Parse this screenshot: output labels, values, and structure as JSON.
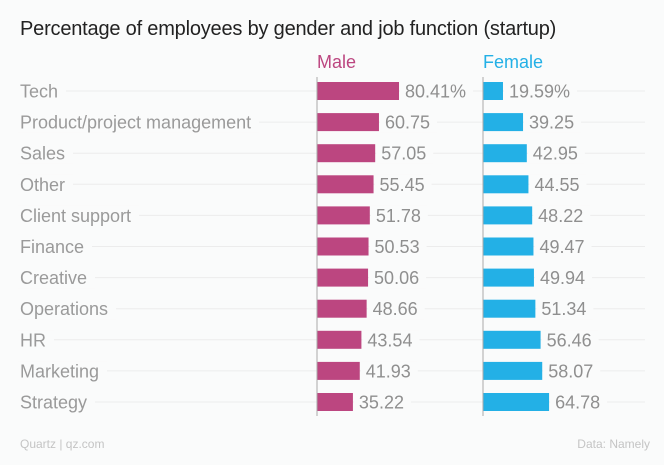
{
  "chart_data": {
    "type": "bar",
    "title": "Percentage of employees by gender and job function (startup)",
    "categories": [
      "Tech",
      "Product/project management",
      "Sales",
      "Other",
      "Client support",
      "Finance",
      "Creative",
      "Operations",
      "HR",
      "Marketing",
      "Strategy"
    ],
    "series": [
      {
        "name": "Male",
        "color": "#bc4680",
        "values": [
          80.41,
          60.75,
          57.05,
          55.45,
          51.78,
          50.53,
          50.06,
          48.66,
          43.54,
          41.93,
          35.22
        ],
        "labels": [
          "80.41%",
          "60.75",
          "57.05",
          "55.45",
          "51.78",
          "50.53",
          "50.06",
          "48.66",
          "43.54",
          "41.93",
          "35.22"
        ]
      },
      {
        "name": "Female",
        "color": "#23b0e6",
        "values": [
          19.59,
          39.25,
          42.95,
          44.55,
          48.22,
          49.47,
          49.94,
          51.34,
          56.46,
          58.07,
          64.78
        ],
        "labels": [
          "19.59%",
          "39.25",
          "42.95",
          "44.55",
          "48.22",
          "49.47",
          "49.94",
          "51.34",
          "56.46",
          "58.07",
          "64.78"
        ]
      }
    ],
    "xlim": [
      0,
      100
    ],
    "grid": true,
    "legend": "top, above each panel",
    "source": "Data: Namely",
    "credit": "Quartz | qz.com"
  }
}
